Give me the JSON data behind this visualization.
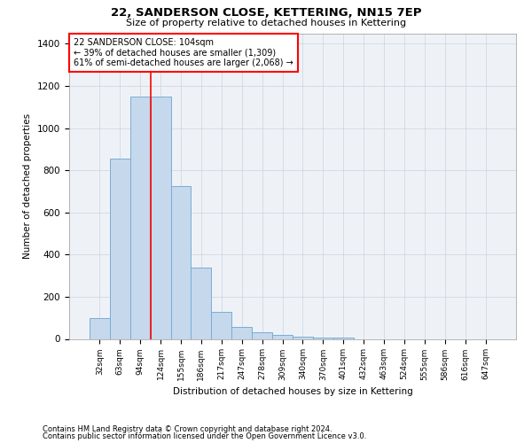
{
  "title1": "22, SANDERSON CLOSE, KETTERING, NN15 7EP",
  "title2": "Size of property relative to detached houses in Kettering",
  "xlabel": "Distribution of detached houses by size in Kettering",
  "ylabel": "Number of detached properties",
  "categories": [
    "32sqm",
    "63sqm",
    "94sqm",
    "124sqm",
    "155sqm",
    "186sqm",
    "217sqm",
    "247sqm",
    "278sqm",
    "309sqm",
    "340sqm",
    "370sqm",
    "401sqm",
    "432sqm",
    "463sqm",
    "524sqm",
    "555sqm",
    "586sqm",
    "616sqm",
    "647sqm"
  ],
  "values": [
    100,
    855,
    1150,
    1150,
    725,
    340,
    130,
    55,
    30,
    20,
    12,
    8,
    5,
    0,
    0,
    0,
    0,
    0,
    0,
    0
  ],
  "bar_color": "#c5d8ec",
  "bar_edge_color": "#7aadd4",
  "grid_color": "#c8d4e0",
  "vline_color": "red",
  "annotation_text": "22 SANDERSON CLOSE: 104sqm\n← 39% of detached houses are smaller (1,309)\n61% of semi-detached houses are larger (2,068) →",
  "footer1": "Contains HM Land Registry data © Crown copyright and database right 2024.",
  "footer2": "Contains public sector information licensed under the Open Government Licence v3.0.",
  "ylim": [
    0,
    1450
  ],
  "yticks": [
    0,
    200,
    400,
    600,
    800,
    1000,
    1200,
    1400
  ],
  "bg_color": "#eef2f7"
}
